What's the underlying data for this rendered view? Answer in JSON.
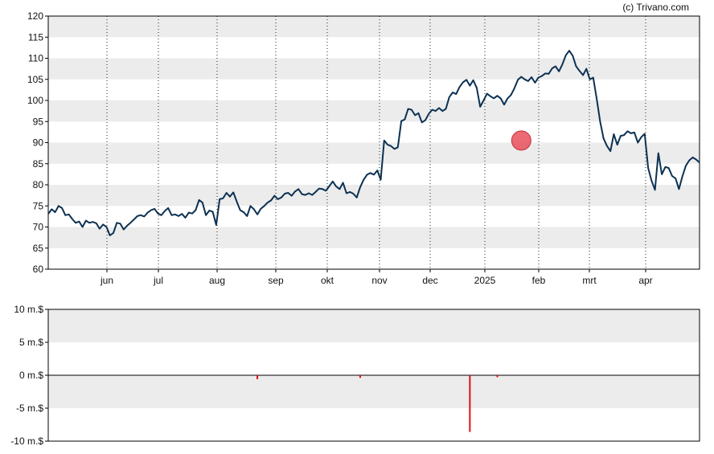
{
  "credit": "(c) Trivano.com",
  "colors": {
    "band": "#ececec",
    "price_line": "#0c3152",
    "volume_bar": "#e01010",
    "marker_fill": "#e8505a",
    "axis": "#000000",
    "grid_vertical": "#222222"
  },
  "chart_data": [
    {
      "type": "line",
      "name": "price",
      "ylim": [
        60,
        120
      ],
      "y_ticks": [
        60,
        65,
        70,
        75,
        80,
        85,
        90,
        95,
        100,
        105,
        110,
        115,
        120
      ],
      "x_ticks": [
        "jun",
        "jul",
        "aug",
        "sep",
        "okt",
        "nov",
        "dec",
        "2025",
        "feb",
        "mrt",
        "apr"
      ],
      "grid": true,
      "marker": {
        "x_index": 138,
        "y": 90.5
      },
      "series": [
        {
          "values": [
            73.1,
            74.2,
            73.5,
            75.0,
            74.5,
            72.8,
            73.0,
            71.9,
            71.0,
            71.3,
            70.0,
            71.5,
            71.0,
            71.2,
            70.9,
            69.6,
            70.6,
            70.0,
            68.0,
            68.6,
            71.0,
            70.8,
            69.4,
            70.3,
            71.0,
            71.8,
            72.6,
            72.8,
            72.5,
            73.4,
            74.0,
            74.3,
            73.2,
            72.8,
            73.8,
            74.5,
            72.8,
            73.0,
            72.6,
            73.1,
            72.2,
            73.4,
            73.2,
            74.0,
            76.4,
            75.8,
            72.8,
            73.9,
            73.6,
            70.5,
            76.6,
            76.8,
            78.1,
            77.2,
            78.2,
            76.0,
            74.0,
            73.5,
            72.6,
            75.0,
            74.2,
            73.0,
            74.3,
            75.0,
            75.8,
            76.3,
            77.4,
            76.6,
            77.0,
            77.9,
            78.1,
            77.4,
            78.4,
            79.0,
            77.8,
            77.6,
            78.0,
            77.6,
            78.3,
            79.1,
            79.0,
            78.6,
            79.7,
            80.8,
            79.6,
            79.0,
            80.5,
            78.0,
            78.3,
            77.9,
            77.0,
            79.4,
            81.2,
            82.4,
            82.8,
            82.4,
            83.4,
            81.2,
            90.5,
            89.5,
            89.2,
            88.5,
            88.9,
            95.1,
            95.5,
            98.0,
            97.8,
            96.5,
            97.0,
            94.8,
            95.3,
            96.8,
            97.8,
            97.5,
            98.2,
            97.5,
            98.0,
            100.8,
            101.9,
            101.5,
            103.2,
            104.3,
            104.9,
            103.5,
            104.8,
            103.0,
            98.5,
            100.0,
            101.6,
            101.0,
            100.5,
            101.1,
            100.5,
            99.0,
            100.5,
            101.3,
            102.9,
            104.9,
            105.6,
            105.0,
            104.6,
            105.5,
            104.2,
            105.4,
            105.8,
            106.4,
            106.3,
            107.6,
            108.1,
            106.9,
            108.6,
            110.7,
            111.8,
            110.6,
            108.1,
            107.0,
            106.0,
            107.5,
            105.0,
            105.4,
            100.4,
            95.0,
            91.0,
            89.2,
            88.0,
            92.0,
            89.5,
            91.6,
            91.8,
            92.7,
            92.2,
            92.4,
            90.0,
            91.3,
            92.1,
            84.0,
            81.0,
            78.8,
            87.5,
            82.5,
            84.2,
            84.0,
            82.1,
            81.5,
            79.0,
            82.0,
            84.5,
            85.8,
            86.5,
            86.0,
            85.3
          ]
        }
      ]
    },
    {
      "type": "bar",
      "name": "volume",
      "ylim": [
        -10,
        10
      ],
      "y_ticks": [
        "10 m.$",
        "5 m.$",
        "0 m.$",
        "-5 m.$",
        "-10 m.$"
      ],
      "y_tick_values": [
        10,
        5,
        0,
        -5,
        -10
      ],
      "bars": [
        {
          "x_index": 61,
          "value": -0.6
        },
        {
          "x_index": 91,
          "value": -0.4
        },
        {
          "x_index": 123,
          "value": -8.6
        },
        {
          "x_index": 131,
          "value": -0.3
        }
      ]
    }
  ]
}
